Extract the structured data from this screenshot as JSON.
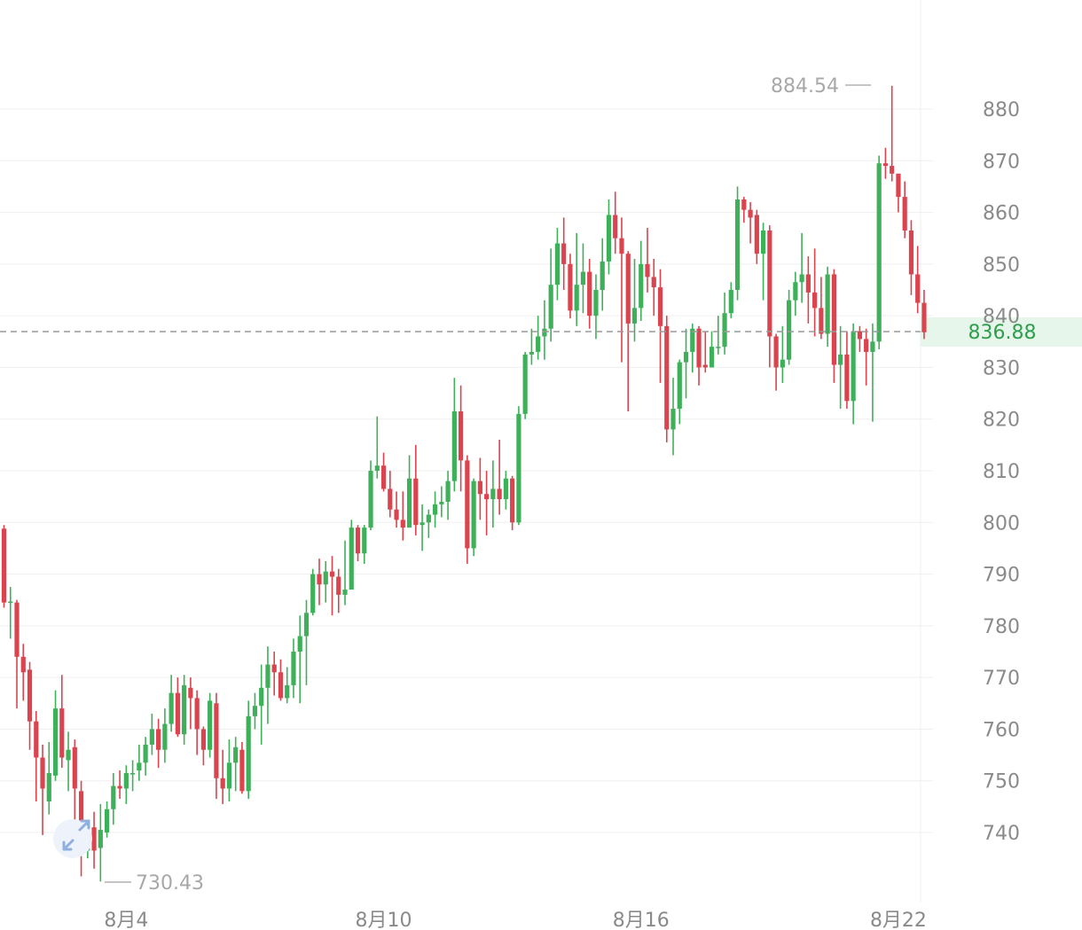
{
  "colors": {
    "up": "#3fb05a",
    "down": "#d9444f",
    "grid": "#efefef",
    "axis_text": "#8a8a8a",
    "current_bg": "#e6f6ea",
    "current_text": "#2e9e4d",
    "dashed_line": "#9a9a9a"
  },
  "icons": {
    "collapse": "arrow-collapse-icon"
  },
  "chart_data": {
    "type": "candlestick",
    "y_axis": {
      "position": "right",
      "ticks": [
        880,
        870,
        860,
        850,
        840,
        830,
        820,
        810,
        800,
        790,
        780,
        770,
        760,
        750,
        740
      ],
      "range": [
        728,
        895
      ]
    },
    "x_axis": {
      "ticks": [
        {
          "label": "8月4",
          "index": 19
        },
        {
          "label": "8月10",
          "index": 59
        },
        {
          "label": "8月16",
          "index": 99
        },
        {
          "label": "8月22",
          "index": 139
        }
      ]
    },
    "current_price": {
      "value": 836.88,
      "label": "836.88"
    },
    "max_marker": {
      "value": 884.54,
      "label": "884.54",
      "index": 135
    },
    "min_marker": {
      "value": 730.43,
      "label": "730.43",
      "index": 15
    },
    "candles": [
      [
        798.8,
        784.5,
        799.5,
        783.5
      ],
      [
        784.5,
        784.7,
        787.5,
        777.5
      ],
      [
        784.5,
        774.0,
        785.0,
        764.0
      ],
      [
        774.0,
        771.0,
        776.5,
        765.5
      ],
      [
        771.5,
        761.5,
        773.0,
        756.0
      ],
      [
        761.5,
        754.5,
        763.5,
        746.0
      ],
      [
        754.5,
        748.5,
        757.0,
        739.5
      ],
      [
        746.0,
        751.5,
        757.5,
        743.5
      ],
      [
        751.0,
        764.0,
        767.5,
        750.0
      ],
      [
        764.0,
        754.5,
        770.5,
        752.5
      ],
      [
        754.0,
        756.0,
        759.5,
        748.0
      ],
      [
        756.5,
        748.5,
        758.0,
        738.0
      ],
      [
        748.0,
        736.5,
        750.0,
        731.5
      ],
      [
        736.5,
        740.5,
        742.0,
        735.0
      ],
      [
        741.0,
        736.5,
        744.0,
        733.0
      ],
      [
        737.0,
        740.5,
        745.5,
        730.5
      ],
      [
        740.0,
        744.5,
        746.0,
        739.0
      ],
      [
        744.5,
        749.0,
        751.5,
        741.5
      ],
      [
        749.0,
        748.5,
        752.0,
        746.5
      ],
      [
        748.5,
        751.5,
        753.0,
        745.5
      ],
      [
        751.5,
        751.5,
        754.0,
        748.0
      ],
      [
        752.0,
        753.5,
        757.0,
        750.0
      ],
      [
        753.5,
        757.0,
        758.5,
        751.0
      ],
      [
        757.0,
        760.0,
        763.0,
        755.0
      ],
      [
        760.0,
        756.0,
        762.0,
        752.5
      ],
      [
        756.0,
        761.0,
        764.0,
        753.5
      ],
      [
        761.0,
        767.0,
        770.5,
        759.5
      ],
      [
        767.0,
        759.0,
        770.0,
        758.5
      ],
      [
        759.0,
        768.5,
        770.5,
        757.0
      ],
      [
        768.0,
        766.0,
        770.0,
        760.0
      ],
      [
        766.0,
        760.0,
        767.5,
        755.0
      ],
      [
        760.0,
        756.0,
        760.5,
        753.0
      ],
      [
        756.0,
        765.5,
        767.0,
        754.5
      ],
      [
        765.0,
        750.5,
        767.0,
        746.5
      ],
      [
        750.5,
        748.5,
        756.0,
        745.5
      ],
      [
        748.5,
        753.5,
        758.0,
        746.0
      ],
      [
        753.5,
        756.5,
        758.5,
        748.0
      ],
      [
        756.0,
        748.0,
        757.5,
        747.5
      ],
      [
        748.0,
        762.5,
        765.5,
        746.5
      ],
      [
        762.5,
        764.5,
        767.0,
        760.0
      ],
      [
        764.5,
        768.0,
        772.5,
        757.0
      ],
      [
        768.0,
        772.5,
        776.0,
        761.0
      ],
      [
        772.5,
        771.0,
        775.0,
        766.5
      ],
      [
        771.0,
        766.0,
        773.5,
        765.5
      ],
      [
        766.0,
        768.5,
        772.0,
        765.0
      ],
      [
        768.5,
        775.0,
        777.5,
        766.0
      ],
      [
        775.0,
        778.0,
        782.0,
        765.0
      ],
      [
        778.0,
        782.5,
        785.0,
        768.5
      ],
      [
        782.5,
        790.0,
        791.0,
        782.0
      ],
      [
        790.0,
        788.0,
        793.0,
        784.0
      ],
      [
        788.0,
        790.5,
        792.5,
        784.5
      ],
      [
        790.5,
        789.5,
        793.5,
        782.0
      ],
      [
        789.5,
        786.0,
        791.0,
        782.5
      ],
      [
        786.0,
        787.0,
        796.5,
        784.0
      ],
      [
        787.0,
        799.0,
        800.5,
        787.0
      ],
      [
        799.0,
        794.0,
        799.5,
        792.5
      ],
      [
        794.0,
        799.0,
        799.5,
        792.0
      ],
      [
        799.0,
        810.0,
        812.0,
        798.5
      ],
      [
        810.0,
        811.0,
        820.5,
        808.5
      ],
      [
        811.0,
        806.5,
        813.5,
        806.0
      ],
      [
        806.5,
        802.5,
        810.0,
        801.0
      ],
      [
        802.5,
        800.5,
        806.0,
        799.0
      ],
      [
        800.5,
        799.0,
        806.0,
        796.5
      ],
      [
        799.0,
        808.5,
        813.0,
        799.0
      ],
      [
        808.5,
        799.5,
        815.0,
        797.5
      ],
      [
        799.5,
        800.0,
        803.5,
        794.5
      ],
      [
        800.0,
        801.5,
        802.5,
        797.0
      ],
      [
        801.5,
        803.5,
        806.0,
        799.0
      ],
      [
        803.5,
        804.0,
        807.0,
        801.0
      ],
      [
        804.0,
        808.0,
        810.0,
        800.5
      ],
      [
        808.0,
        821.5,
        828.0,
        806.0
      ],
      [
        821.5,
        812.0,
        826.5,
        806.0
      ],
      [
        812.0,
        795.0,
        813.0,
        792.0
      ],
      [
        795.0,
        808.0,
        808.5,
        793.5
      ],
      [
        808.0,
        805.5,
        812.5,
        800.5
      ],
      [
        805.5,
        804.5,
        810.0,
        797.5
      ],
      [
        804.5,
        806.5,
        812.0,
        799.0
      ],
      [
        806.5,
        804.5,
        816.0,
        801.5
      ],
      [
        804.5,
        808.5,
        810.0,
        802.5
      ],
      [
        808.5,
        800.0,
        809.0,
        798.5
      ],
      [
        800.0,
        821.0,
        822.5,
        799.5
      ],
      [
        821.0,
        832.5,
        833.0,
        820.0
      ],
      [
        832.5,
        833.0,
        837.5,
        830.5
      ],
      [
        833.0,
        836.0,
        840.0,
        831.5
      ],
      [
        836.0,
        837.5,
        843.0,
        831.5
      ],
      [
        837.5,
        846.0,
        853.0,
        835.0
      ],
      [
        846.0,
        854.0,
        857.0,
        843.0
      ],
      [
        854.0,
        850.0,
        859.0,
        845.0
      ],
      [
        850.0,
        841.0,
        852.0,
        839.5
      ],
      [
        841.0,
        846.0,
        856.0,
        838.0
      ],
      [
        846.0,
        848.5,
        854.0,
        840.5
      ],
      [
        848.5,
        840.0,
        851.0,
        837.5
      ],
      [
        840.0,
        845.0,
        848.0,
        835.5
      ],
      [
        845.0,
        850.5,
        855.0,
        841.0
      ],
      [
        850.5,
        859.5,
        862.5,
        848.0
      ],
      [
        859.5,
        855.0,
        864.0,
        852.0
      ],
      [
        855.0,
        852.0,
        859.0,
        831.0
      ],
      [
        852.0,
        838.5,
        852.5,
        821.5
      ],
      [
        838.5,
        841.5,
        851.0,
        835.0
      ],
      [
        841.5,
        850.0,
        854.5,
        839.0
      ],
      [
        850.0,
        847.5,
        857.0,
        844.5
      ],
      [
        847.5,
        845.5,
        851.0,
        840.0
      ],
      [
        845.5,
        838.0,
        849.0,
        827.0
      ],
      [
        838.0,
        818.0,
        840.0,
        815.5
      ],
      [
        818.0,
        822.0,
        828.0,
        813.0
      ],
      [
        822.0,
        831.0,
        831.5,
        819.0
      ],
      [
        831.0,
        833.0,
        837.5,
        824.0
      ],
      [
        833.0,
        837.5,
        838.5,
        829.0
      ],
      [
        837.5,
        830.0,
        838.0,
        826.5
      ],
      [
        830.5,
        830.0,
        837.0,
        829.0
      ],
      [
        830.0,
        834.0,
        837.0,
        830.0
      ],
      [
        834.0,
        834.0,
        840.0,
        832.5
      ],
      [
        834.0,
        840.5,
        844.5,
        832.5
      ],
      [
        840.5,
        845.0,
        846.5,
        839.5
      ],
      [
        845.0,
        862.5,
        865.0,
        843.0
      ],
      [
        862.5,
        860.5,
        863.0,
        858.0
      ],
      [
        860.5,
        859.0,
        862.0,
        854.0
      ],
      [
        859.5,
        852.0,
        860.5,
        850.0
      ],
      [
        852.0,
        856.5,
        858.0,
        843.0
      ],
      [
        856.5,
        836.0,
        857.5,
        830.0
      ],
      [
        836.0,
        830.0,
        836.5,
        825.5
      ],
      [
        830.0,
        831.5,
        838.0,
        827.0
      ],
      [
        831.5,
        843.0,
        845.0,
        830.5
      ],
      [
        843.0,
        846.5,
        848.5,
        840.0
      ],
      [
        846.5,
        848.0,
        856.0,
        842.5
      ],
      [
        848.0,
        844.5,
        851.5,
        838.5
      ],
      [
        844.5,
        841.5,
        853.0,
        836.0
      ],
      [
        841.5,
        836.5,
        847.5,
        835.5
      ],
      [
        836.5,
        848.0,
        849.5,
        834.0
      ],
      [
        848.0,
        830.5,
        849.0,
        827.0
      ],
      [
        830.5,
        832.5,
        838.0,
        822.0
      ],
      [
        832.5,
        823.5,
        837.0,
        822.0
      ],
      [
        823.5,
        837.0,
        838.5,
        819.0
      ],
      [
        837.0,
        835.5,
        838.0,
        833.0
      ],
      [
        835.5,
        833.0,
        837.5,
        826.5
      ],
      [
        833.0,
        835.0,
        838.5,
        819.5
      ],
      [
        835.0,
        869.5,
        871.0,
        833.5
      ],
      [
        869.5,
        869.0,
        872.5,
        866.5
      ],
      [
        869.0,
        867.5,
        884.5,
        866.0
      ],
      [
        867.5,
        863.0,
        867.5,
        860.0
      ],
      [
        863.0,
        856.5,
        866.0,
        855.0
      ],
      [
        856.5,
        848.0,
        858.5,
        844.0
      ],
      [
        848.0,
        842.5,
        853.5,
        840.5
      ],
      [
        842.5,
        836.8,
        845.0,
        835.5
      ]
    ]
  }
}
